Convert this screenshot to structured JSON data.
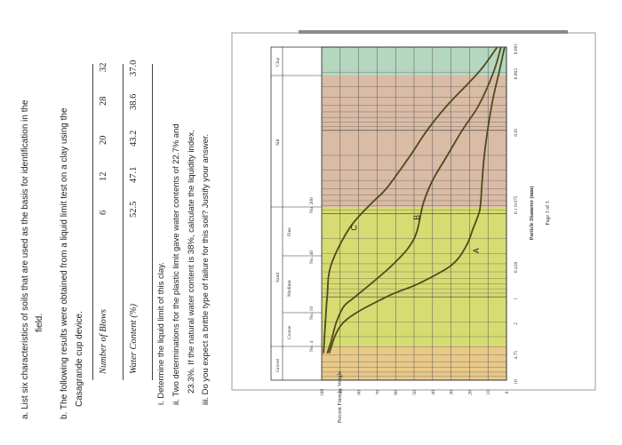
{
  "questions": {
    "a": "a.  List six characteristics of soils that are used as the basis for identification in the",
    "a_cont": "field.",
    "b": "b.  The following results were obtained from a liquid limit test on a clay using the",
    "b_cont": "Casagrande cup device.",
    "table": {
      "row1_label": "Number of Blows",
      "row2_label": "Water Content (%)",
      "blows": [
        "6",
        "12",
        "20",
        "28",
        "32"
      ],
      "water": [
        "52.5",
        "47.1",
        "43.2",
        "38.6",
        "37.0"
      ]
    },
    "sub_i": "i.   Determine the liquid limit of this clay.",
    "sub_ii": "ii.  Two determinations for the plastic limit gave water contents of 22.7% and",
    "sub_ii_cont": "23.3%. If the natural water content is 38%, calculate the liquidity index.",
    "sub_iii": "iii.  Do you expect a brittle type of failure for this soil? Justify your answer."
  },
  "chart": {
    "header_gravel": "Gravel",
    "header_sand": "Sand",
    "header_silt": "Silt",
    "header_clay": "Clay",
    "sub_coarse": "Coarse",
    "sub_medium": "Medium",
    "sub_fine": "Fine",
    "sieve_labels": [
      "No. 4",
      "No. 10",
      "No. 40",
      "No. 200"
    ],
    "ylabel": "Percent Finer by Weight",
    "xlabel": "Particle Diameter (mm)",
    "page": "Page 3 of 3",
    "yticks": [
      "100",
      "90",
      "80",
      "70",
      "60",
      "50",
      "40",
      "30",
      "20",
      "10",
      "0"
    ],
    "xticks": [
      "10",
      "4.75",
      "2",
      "1",
      "0.420",
      "0.1 0.075",
      "0.01",
      "0.002",
      "0.001"
    ],
    "curve_labels": [
      "A",
      "B",
      "C"
    ],
    "colors": {
      "gravel": "#e9c98a",
      "sand": "#d7dc72",
      "silt": "#d9bba6",
      "clay": "#b5d7c0",
      "curve": "#4e4a1c"
    }
  },
  "chart_data": {
    "type": "line",
    "xlabel": "Particle Diameter (mm)",
    "ylabel": "Percent Finer by Weight",
    "x_scale": "log",
    "xlim": [
      10,
      0.001
    ],
    "ylim": [
      0,
      100
    ],
    "series": [
      {
        "name": "A",
        "x": [
          4.75,
          2,
          1,
          0.7,
          0.42,
          0.25,
          0.15,
          0.1,
          0.075,
          0.02,
          0.005,
          0.002,
          0.001
        ],
        "y": [
          96,
          88,
          65,
          48,
          30,
          22,
          18,
          15,
          14,
          12,
          8,
          4,
          1
        ]
      },
      {
        "name": "B",
        "x": [
          4.75,
          3.5,
          2,
          1.3,
          1,
          0.42,
          0.2,
          0.075,
          0.04,
          0.02,
          0.01,
          0.005,
          0.002,
          0.001
        ],
        "y": [
          97,
          95,
          92,
          88,
          82,
          62,
          50,
          45,
          40,
          32,
          24,
          15,
          7,
          3
        ]
      },
      {
        "name": "C",
        "x": [
          4.75,
          2,
          1,
          0.42,
          0.15,
          0.075,
          0.05,
          0.02,
          0.01,
          0.005,
          0.002,
          0.001
        ],
        "y": [
          99,
          98,
          97,
          95,
          85,
          73,
          65,
          52,
          43,
          32,
          15,
          5
        ]
      }
    ]
  }
}
